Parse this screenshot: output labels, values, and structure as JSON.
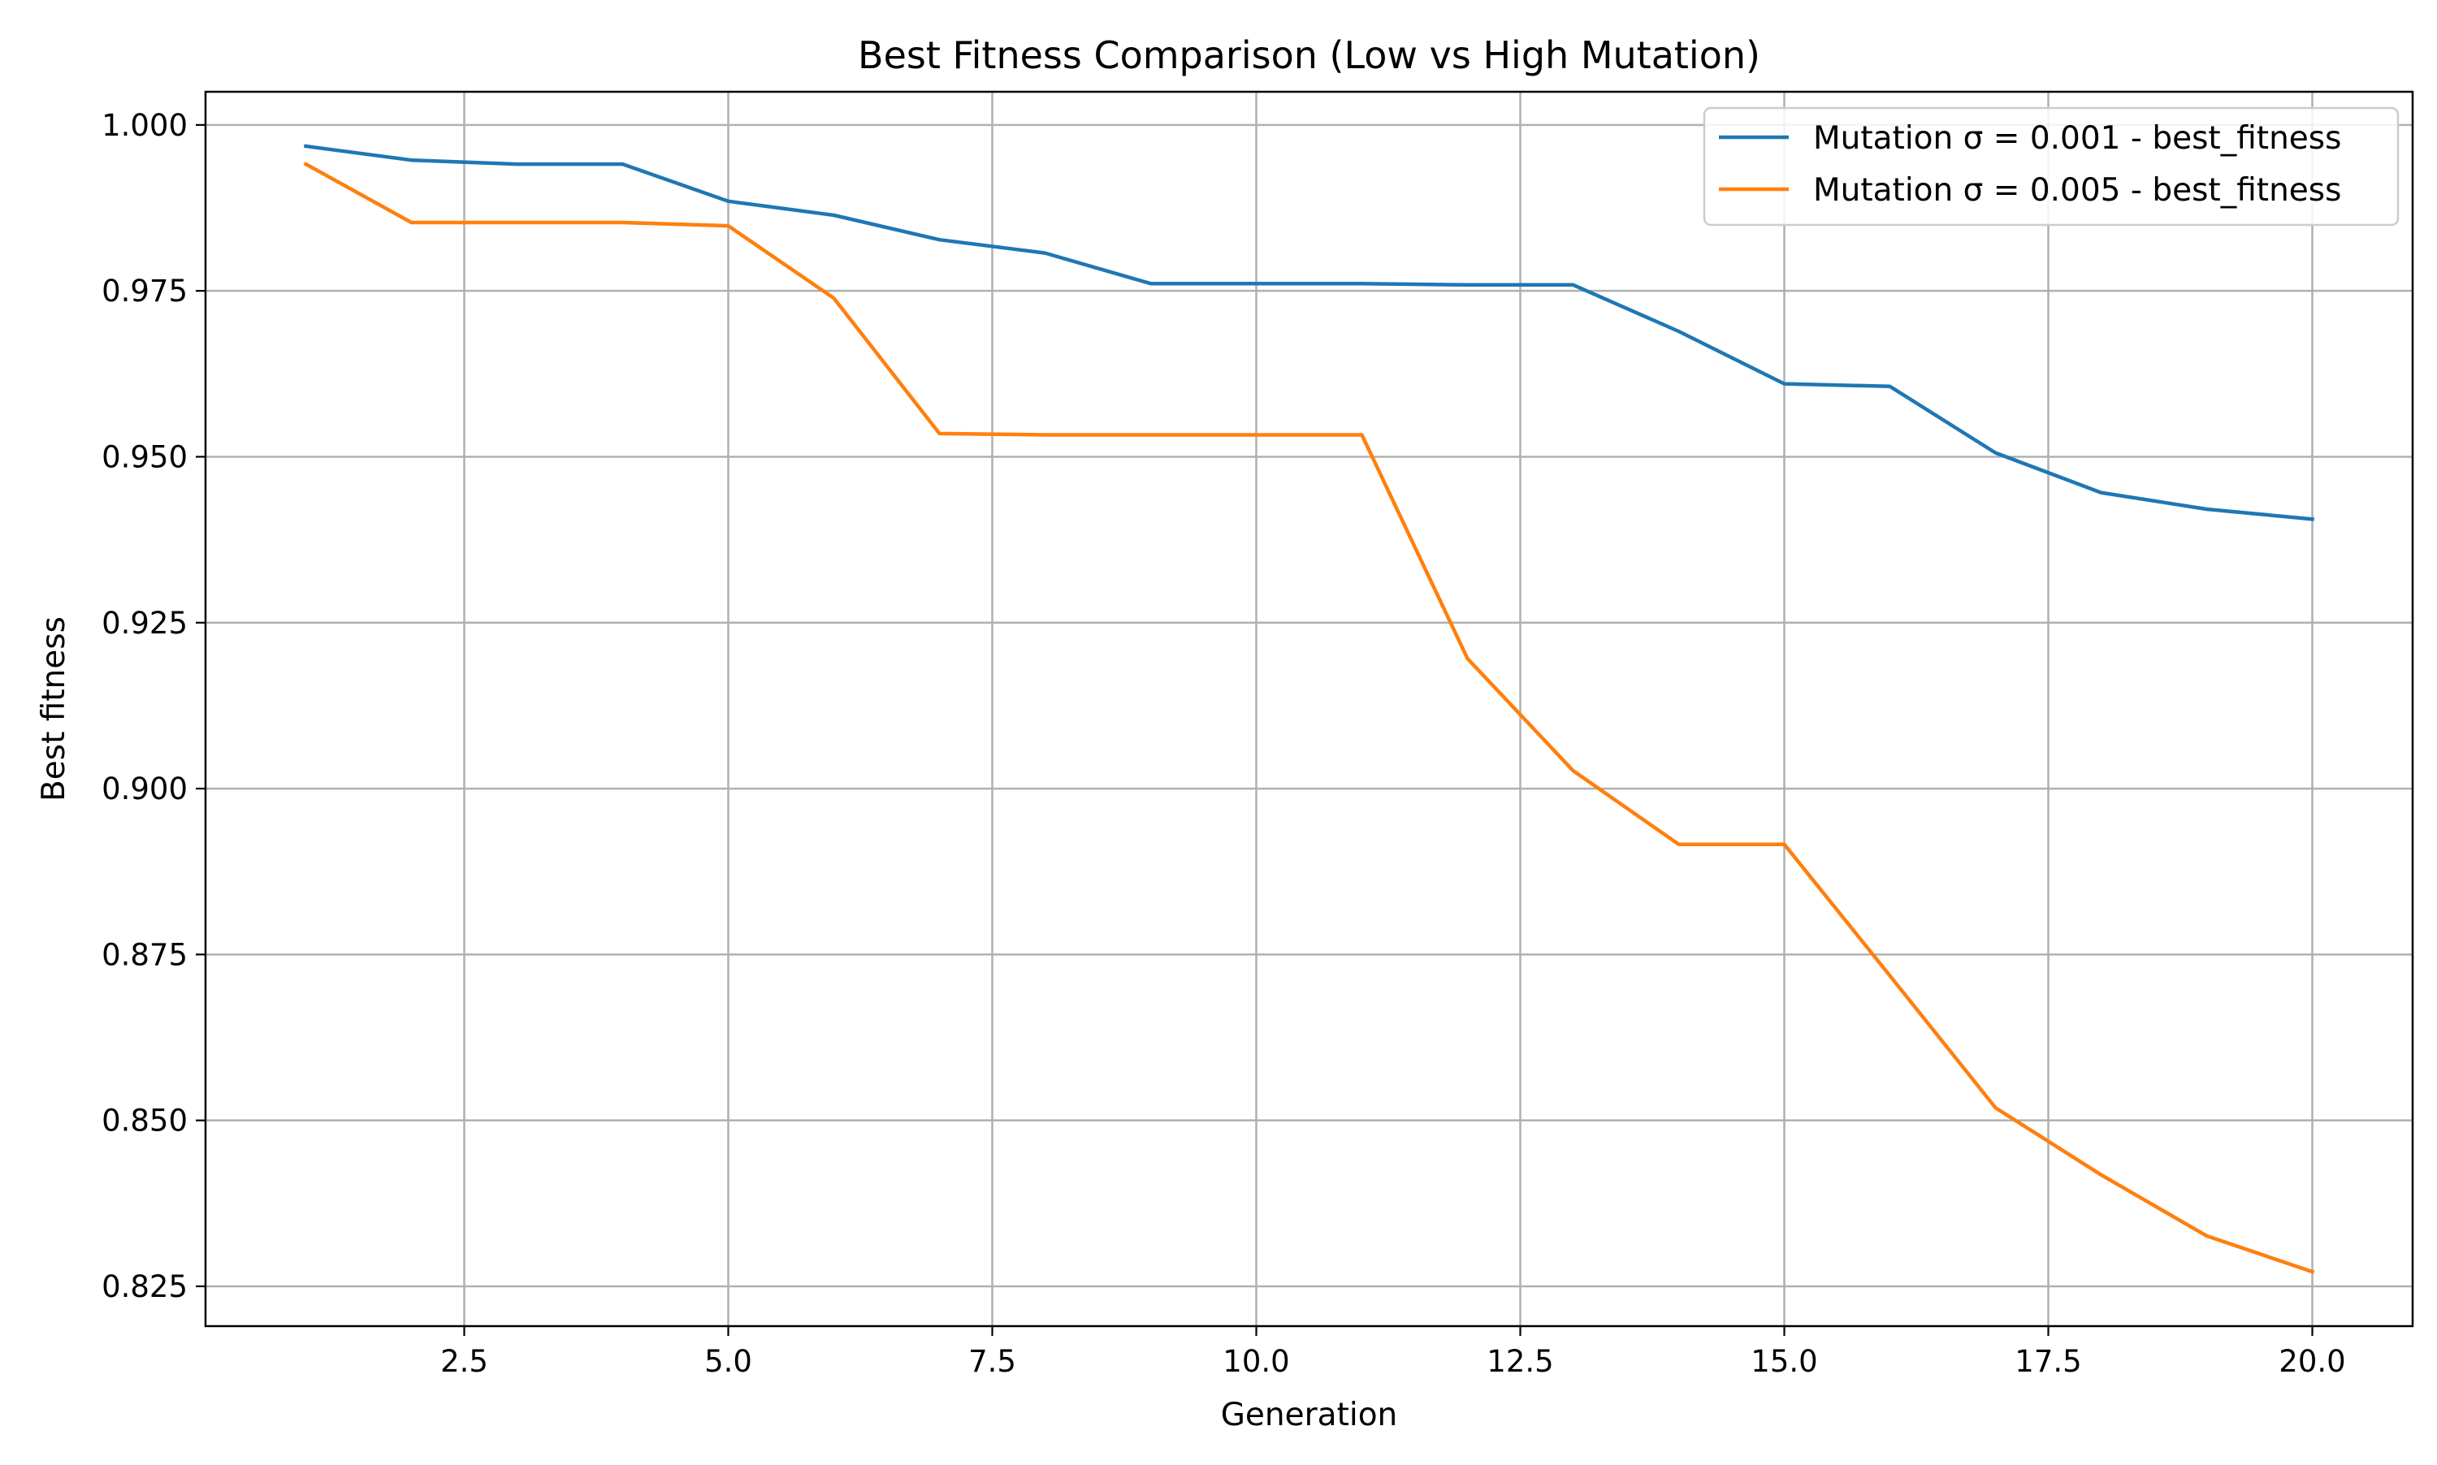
{
  "chart_data": {
    "type": "line",
    "title": "Best Fitness Comparison (Low vs High Mutation)",
    "xlabel": "Generation",
    "ylabel": "Best fitness",
    "xlim": [
      0.05,
      20.95
    ],
    "ylim": [
      0.819,
      1.005
    ],
    "xticks": [
      2.5,
      5.0,
      7.5,
      10.0,
      12.5,
      15.0,
      17.5,
      20.0
    ],
    "xtick_labels": [
      "2.5",
      "5.0",
      "7.5",
      "10.0",
      "12.5",
      "15.0",
      "17.5",
      "20.0"
    ],
    "yticks": [
      0.825,
      0.85,
      0.875,
      0.9,
      0.925,
      0.95,
      0.975,
      1.0
    ],
    "ytick_labels": [
      "0.825",
      "0.850",
      "0.875",
      "0.900",
      "0.925",
      "0.950",
      "0.975",
      "1.000"
    ],
    "grid": true,
    "legend_position": "top-right",
    "x": [
      1,
      2,
      3,
      4,
      5,
      6,
      7,
      8,
      9,
      10,
      11,
      12,
      13,
      14,
      15,
      16,
      17,
      18,
      19,
      20
    ],
    "series": [
      {
        "name": "Mutation σ = 0.001 - best_fitness",
        "color": "#1f77b4",
        "values": [
          0.9968,
          0.9947,
          0.9941,
          0.9941,
          0.9885,
          0.9864,
          0.9827,
          0.9807,
          0.9761,
          0.9761,
          0.9761,
          0.9759,
          0.9759,
          0.9689,
          0.961,
          0.9606,
          0.9506,
          0.9446,
          0.9421,
          0.9406
        ]
      },
      {
        "name": "Mutation σ = 0.005 - best_fitness",
        "color": "#ff7f0e",
        "values": [
          0.9941,
          0.9853,
          0.9853,
          0.9853,
          0.9848,
          0.9739,
          0.9535,
          0.9533,
          0.9533,
          0.9533,
          0.9533,
          0.9196,
          0.9027,
          0.8916,
          0.8916,
          0.8718,
          0.8519,
          0.8418,
          0.8326,
          0.8272
        ]
      }
    ]
  }
}
